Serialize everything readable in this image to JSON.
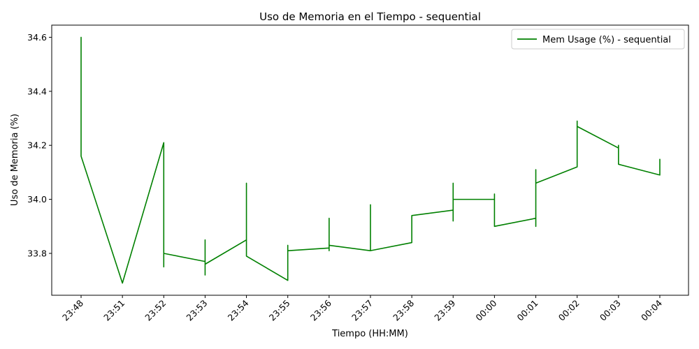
{
  "chart_data": {
    "type": "line",
    "title": "Uso de Memoria en el Tiempo - sequential",
    "xlabel": "Tiempo (HH:MM)",
    "ylabel": "Uso de Memoria (%)",
    "categories": [
      "23:48",
      "23:51",
      "23:52",
      "23:53",
      "23:54",
      "23:55",
      "23:56",
      "23:57",
      "23:58",
      "23:59",
      "00:00",
      "00:01",
      "00:02",
      "00:03",
      "00:04"
    ],
    "yticks": [
      33.8,
      34.0,
      34.2,
      34.4,
      34.6
    ],
    "ytick_labels": [
      "33.8",
      "34.0",
      "34.2",
      "34.4",
      "34.6"
    ],
    "ylim": [
      33.645,
      34.645
    ],
    "legend_position": "top-right",
    "grid": false,
    "series": [
      {
        "name": "Mem Usage (%) - sequential",
        "color": "#008000",
        "points": [
          [
            0,
            34.51
          ],
          [
            0,
            34.6
          ],
          [
            0,
            34.16
          ],
          [
            1,
            33.69
          ],
          [
            2,
            34.21
          ],
          [
            2,
            33.75
          ],
          [
            2,
            33.8
          ],
          [
            3,
            33.77
          ],
          [
            3,
            33.72
          ],
          [
            3,
            33.85
          ],
          [
            3,
            33.76
          ],
          [
            4,
            33.85
          ],
          [
            4,
            34.06
          ],
          [
            4,
            33.79
          ],
          [
            5,
            33.7
          ],
          [
            5,
            33.83
          ],
          [
            5,
            33.81
          ],
          [
            6,
            33.82
          ],
          [
            6,
            33.93
          ],
          [
            6,
            33.81
          ],
          [
            6,
            33.83
          ],
          [
            7,
            33.81
          ],
          [
            7,
            33.98
          ],
          [
            7,
            33.81
          ],
          [
            8,
            33.84
          ],
          [
            8,
            33.94
          ],
          [
            9,
            33.96
          ],
          [
            9,
            33.92
          ],
          [
            9,
            34.06
          ],
          [
            9,
            34.0
          ],
          [
            10,
            34.0
          ],
          [
            10,
            34.02
          ],
          [
            10,
            33.9
          ],
          [
            11,
            33.93
          ],
          [
            11,
            33.9
          ],
          [
            11,
            34.11
          ],
          [
            11,
            34.06
          ],
          [
            12,
            34.12
          ],
          [
            12,
            34.29
          ],
          [
            12,
            34.27
          ],
          [
            13,
            34.19
          ],
          [
            13,
            34.2
          ],
          [
            13,
            34.13
          ],
          [
            14,
            34.09
          ],
          [
            14,
            34.15
          ]
        ]
      }
    ]
  }
}
